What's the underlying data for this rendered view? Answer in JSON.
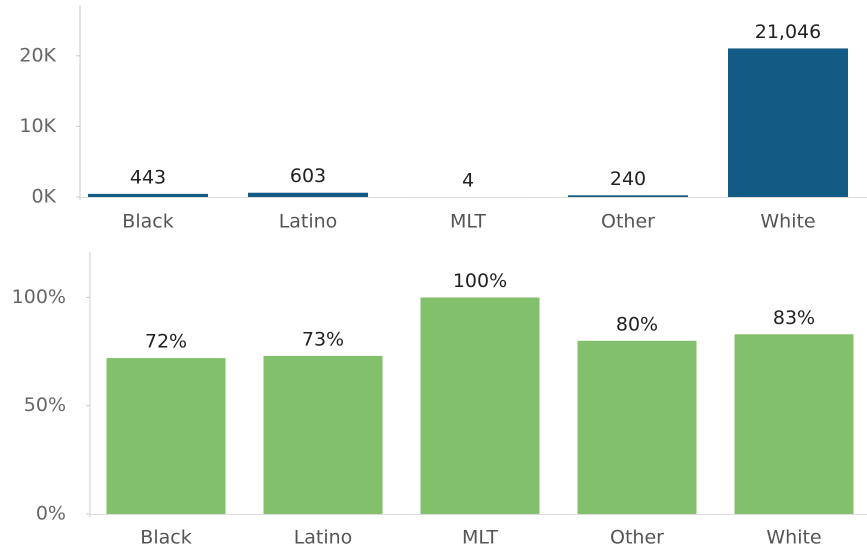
{
  "chart_data": [
    {
      "type": "bar",
      "categories": [
        "Black",
        "Latino",
        "MLT",
        "Other",
        "White"
      ],
      "values": [
        443,
        603,
        4,
        240,
        21046
      ],
      "value_labels": [
        "443",
        "603",
        "4",
        "240",
        "21,046"
      ],
      "color": "#135a84",
      "ylim": [
        0,
        27200
      ],
      "yticks": [
        {
          "value": 0,
          "label": "0K"
        },
        {
          "value": 10000,
          "label": "10K"
        },
        {
          "value": 20000,
          "label": "20K"
        }
      ],
      "grid": false
    },
    {
      "type": "bar",
      "categories": [
        "Black",
        "Latino",
        "MLT",
        "Other",
        "White"
      ],
      "values": [
        72,
        73,
        100,
        80,
        83
      ],
      "value_labels": [
        "72%",
        "73%",
        "100%",
        "80%",
        "83%"
      ],
      "color": "#82c06b",
      "ylim": [
        0,
        121
      ],
      "yticks": [
        {
          "value": 0,
          "label": "0%"
        },
        {
          "value": 50,
          "label": "50%"
        },
        {
          "value": 100,
          "label": "100%"
        }
      ],
      "grid": false
    }
  ]
}
